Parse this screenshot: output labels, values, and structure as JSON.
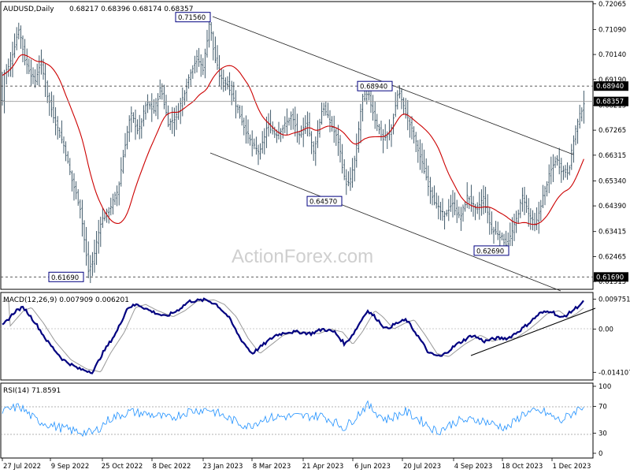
{
  "chart_data": [
    {
      "type": "ohlc",
      "title": "AUDUSD,Daily",
      "ohlc_text": "0.68217 0.68396 0.68174 0.68357",
      "ylim": [
        0.6122,
        0.7215
      ],
      "y_ticks": [
        "0.72065",
        "0.71090",
        "0.70140",
        "0.69190",
        "0.68215",
        "0.67265",
        "0.66315",
        "0.65340",
        "0.64390",
        "0.63415",
        "0.62465",
        "0.61515"
      ],
      "x_ticks": [
        "27 Jul 2022",
        "9 Sep 2022",
        "25 Oct 2022",
        "8 Dec 2022",
        "23 Jan 2023",
        "8 Mar 2023",
        "21 Apr 2023",
        "6 Jun 2023",
        "20 Jul 2023",
        "4 Sep 2023",
        "18 Oct 2023",
        "1 Dec 2023"
      ],
      "price_boxes": [
        "0.68940",
        "0.68357",
        "0.61690"
      ],
      "horizontal_levels": [
        0.6894,
        0.68357,
        0.6169
      ],
      "annotations": [
        {
          "text": "0.71560",
          "value": 0.7156
        },
        {
          "text": "0.68940",
          "value": 0.6894
        },
        {
          "text": "0.64570",
          "value": 0.6457
        },
        {
          "text": "0.62690",
          "value": 0.6269
        },
        {
          "text": "0.61690",
          "value": 0.6169
        }
      ],
      "watermark": "ActionForex.com",
      "colors": {
        "bars": "#2e4a5c",
        "ma": "#cc0000",
        "dashed": "#555555"
      }
    },
    {
      "type": "line",
      "title": "MACD(12,26,9) 0.007909 0.006201",
      "y_ticks": [
        "0.009751",
        "0.00",
        "-0.014107"
      ],
      "ylim": [
        -0.0166,
        0.0119
      ],
      "colors": {
        "macd": "#000080",
        "signal": "#999999"
      }
    },
    {
      "type": "line",
      "title": "RSI(14) 71.8591",
      "y_ticks": [
        "100",
        "70",
        "30",
        "0"
      ],
      "ylim": [
        0,
        100
      ],
      "levels": [
        70,
        30
      ],
      "colors": {
        "rsi": "#1e90ff",
        "levels": "#999999"
      }
    }
  ]
}
